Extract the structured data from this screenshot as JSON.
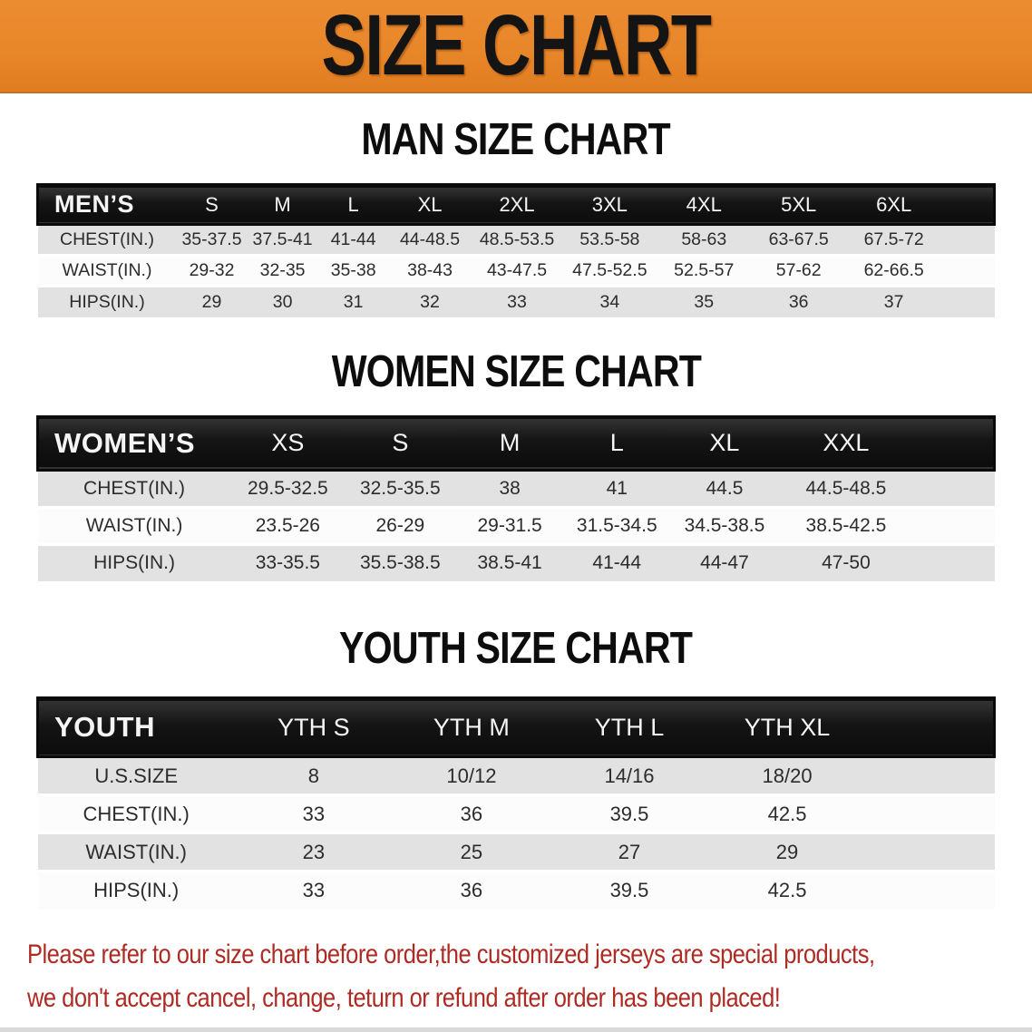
{
  "banner": {
    "title": "SIZE CHART",
    "bg_color": "#E8862A",
    "text_color": "#141414"
  },
  "colors": {
    "table_header_bg": "#141414",
    "table_header_text": "#F4F4F4",
    "row_shaded": "#E2E2E2",
    "row_plain": "#FCFCFC",
    "disclaimer_red": "#AE2B23"
  },
  "sections": {
    "men": {
      "title": "MAN SIZE CHART",
      "table": {
        "header_label": "MEN’S",
        "columns": [
          "S",
          "M",
          "L",
          "XL",
          "2XL",
          "3XL",
          "4XL",
          "5XL",
          "6XL"
        ],
        "rows": [
          {
            "label": "CHEST(IN.)",
            "values": [
              "35-37.5",
              "37.5-41",
              "41-44",
              "44-48.5",
              "48.5-53.5",
              "53.5-58",
              "58-63",
              "63-67.5",
              "67.5-72"
            ]
          },
          {
            "label": "WAIST(IN.)",
            "values": [
              "29-32",
              "32-35",
              "35-38",
              "38-43",
              "43-47.5",
              "47.5-52.5",
              "52.5-57",
              "57-62",
              "62-66.5"
            ]
          },
          {
            "label": "HIPS(IN.)",
            "values": [
              "29",
              "30",
              "31",
              "32",
              "33",
              "34",
              "35",
              "36",
              "37"
            ]
          }
        ]
      }
    },
    "women": {
      "title": "WOMEN SIZE CHART",
      "table": {
        "header_label": "WOMEN’S",
        "columns": [
          "XS",
          "S",
          "M",
          "L",
          "XL",
          "XXL"
        ],
        "rows": [
          {
            "label": "CHEST(IN.)",
            "values": [
              "29.5-32.5",
              "32.5-35.5",
              "38",
              "41",
              "44.5",
              "44.5-48.5"
            ]
          },
          {
            "label": "WAIST(IN.)",
            "values": [
              "23.5-26",
              "26-29",
              "29-31.5",
              "31.5-34.5",
              "34.5-38.5",
              "38.5-42.5"
            ]
          },
          {
            "label": "HIPS(IN.)",
            "values": [
              "33-35.5",
              "35.5-38.5",
              "38.5-41",
              "41-44",
              "44-47",
              "47-50"
            ]
          }
        ]
      }
    },
    "youth": {
      "title": "YOUTH SIZE CHART",
      "table": {
        "header_label": "YOUTH",
        "columns": [
          "YTH S",
          "YTH M",
          "YTH L",
          "YTH XL"
        ],
        "rows": [
          {
            "label": "U.S.SIZE",
            "values": [
              "8",
              "10/12",
              "14/16",
              "18/20"
            ]
          },
          {
            "label": "CHEST(IN.)",
            "values": [
              "33",
              "36",
              "39.5",
              "42.5"
            ]
          },
          {
            "label": "WAIST(IN.)",
            "values": [
              "23",
              "25",
              "27",
              "29"
            ]
          },
          {
            "label": "HIPS(IN.)",
            "values": [
              "33",
              "36",
              "39.5",
              "42.5"
            ]
          }
        ]
      }
    }
  },
  "disclaimer": {
    "line1": "Please refer to our size chart before order,the customized jerseys are special products,",
    "line2": "we don't accept cancel, change, teturn or refund after order has been placed!"
  }
}
